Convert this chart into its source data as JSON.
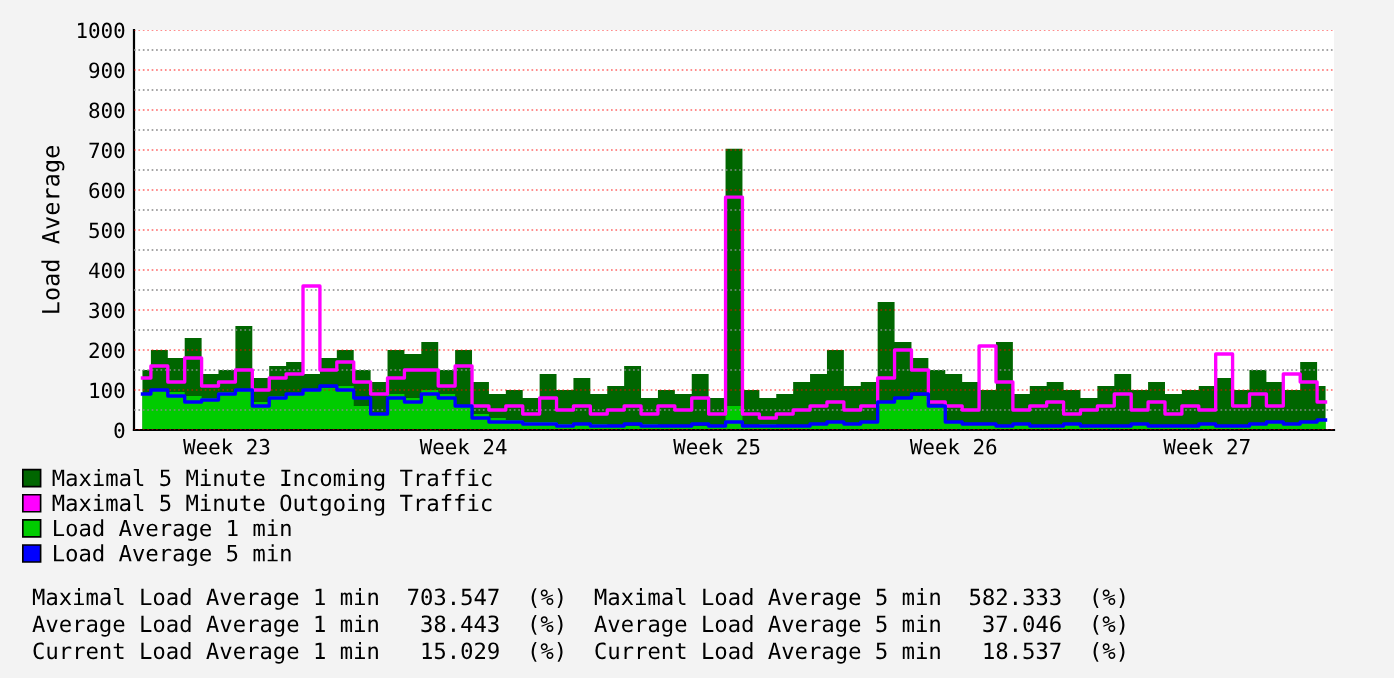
{
  "chart_data": {
    "type": "area",
    "ylabel": "Load Average",
    "categories": [
      null,
      null,
      null,
      null,
      null,
      "Week 23",
      null,
      null,
      null,
      null,
      null,
      null,
      null,
      null,
      null,
      null,
      null,
      null,
      null,
      "Week 24",
      null,
      null,
      null,
      null,
      null,
      null,
      null,
      null,
      null,
      null,
      null,
      null,
      null,
      null,
      "Week 25",
      null,
      null,
      null,
      null,
      null,
      null,
      null,
      null,
      null,
      null,
      null,
      null,
      null,
      "Week 26",
      null,
      null,
      null,
      null,
      null,
      null,
      null,
      null,
      null,
      null,
      null,
      null,
      null,
      null,
      "Week 27",
      null,
      null,
      null,
      null,
      null,
      null,
      null
    ],
    "series": [
      {
        "name": "Maximal 5 Minute Incoming Traffic",
        "color": "#006600",
        "values": [
          150,
          200,
          180,
          230,
          140,
          150,
          260,
          130,
          160,
          170,
          140,
          180,
          200,
          150,
          120,
          200,
          190,
          220,
          150,
          200,
          120,
          90,
          100,
          80,
          140,
          100,
          130,
          90,
          110,
          160,
          80,
          100,
          90,
          140,
          80,
          703,
          100,
          80,
          90,
          120,
          140,
          200,
          110,
          120,
          320,
          220,
          180,
          150,
          140,
          120,
          100,
          220,
          90,
          110,
          120,
          100,
          80,
          110,
          140,
          100,
          120,
          90,
          100,
          110,
          130,
          100,
          150,
          120,
          100,
          170,
          110
        ]
      },
      {
        "name": "Maximal 5 Minute Outgoing Traffic",
        "type": "step",
        "color": "#ff00ff",
        "values": [
          130,
          160,
          120,
          180,
          110,
          120,
          150,
          100,
          130,
          140,
          360,
          150,
          170,
          120,
          90,
          130,
          150,
          150,
          110,
          160,
          60,
          50,
          60,
          40,
          80,
          50,
          60,
          40,
          50,
          60,
          40,
          60,
          50,
          80,
          40,
          582,
          40,
          30,
          40,
          50,
          60,
          70,
          50,
          60,
          130,
          200,
          150,
          70,
          60,
          50,
          210,
          120,
          50,
          60,
          70,
          40,
          50,
          60,
          90,
          50,
          70,
          40,
          60,
          50,
          190,
          60,
          90,
          60,
          140,
          120,
          70
        ]
      },
      {
        "name": "Load Average 1 min",
        "color": "#00cc00",
        "values": [
          90,
          100,
          95,
          85,
          80,
          95,
          100,
          70,
          85,
          90,
          100,
          105,
          110,
          60,
          40,
          90,
          80,
          100,
          90,
          60,
          40,
          30,
          25,
          20,
          20,
          15,
          15,
          15,
          10,
          10,
          15,
          10,
          10,
          10,
          10,
          60,
          10,
          15,
          10,
          10,
          15,
          20,
          15,
          20,
          70,
          80,
          85,
          60,
          20,
          15,
          15,
          10,
          15,
          10,
          10,
          15,
          10,
          10,
          10,
          15,
          10,
          10,
          10,
          15,
          10,
          10,
          15,
          20,
          15,
          20,
          25
        ]
      },
      {
        "name": "Load Average 5 min",
        "type": "step",
        "color": "#0000ff",
        "values": [
          90,
          100,
          85,
          70,
          75,
          90,
          100,
          60,
          80,
          90,
          100,
          110,
          100,
          80,
          40,
          80,
          70,
          90,
          80,
          60,
          30,
          20,
          20,
          15,
          15,
          10,
          15,
          10,
          10,
          15,
          10,
          10,
          10,
          15,
          10,
          20,
          10,
          10,
          10,
          10,
          15,
          20,
          15,
          20,
          70,
          80,
          90,
          60,
          20,
          15,
          15,
          10,
          15,
          10,
          10,
          15,
          10,
          10,
          10,
          15,
          10,
          10,
          10,
          15,
          10,
          10,
          15,
          20,
          15,
          20,
          25
        ]
      }
    ],
    "ylim": [
      0,
      1000
    ],
    "yticks": [
      0,
      100,
      200,
      300,
      400,
      500,
      600,
      700,
      800,
      900,
      1000
    ],
    "grid": true,
    "legend": "bottom",
    "annotations": [
      "Maximal Load Average 1 min  703.547  (%)  Maximal Load Average 5 min  582.333  (%)",
      "Average Load Average 1 min   38.443  (%)  Average Load Average 5 min   37.046  (%)",
      "Current Load Average 1 min   15.029  (%)  Current Load Average 5 min   18.537  (%)"
    ]
  }
}
